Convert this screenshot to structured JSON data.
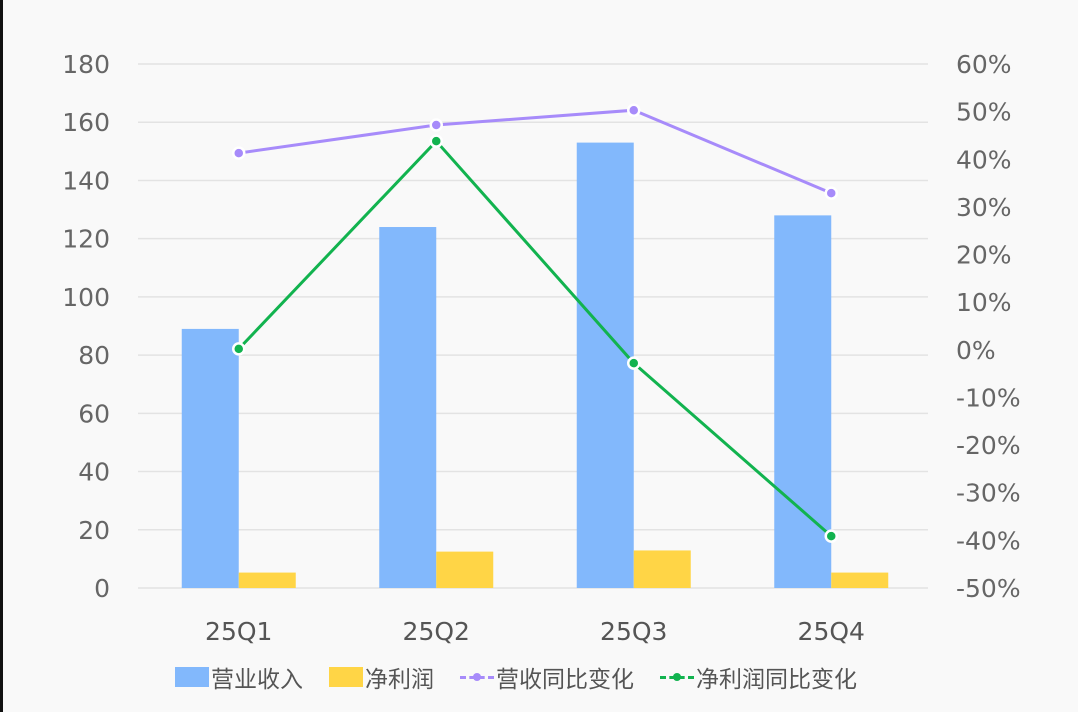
{
  "chart_data": {
    "type": "bar",
    "title": "",
    "categories": [
      "25Q1",
      "25Q2",
      "25Q3",
      "25Q4"
    ],
    "series": [
      {
        "name": "营业收入",
        "type": "bar",
        "axis": "left",
        "color": "#82b8fc",
        "values": [
          89,
          124,
          153,
          128
        ]
      },
      {
        "name": "净利润",
        "type": "bar",
        "axis": "left",
        "color": "#ffd546",
        "values": [
          5.3,
          12.5,
          12.9,
          5.3
        ]
      },
      {
        "name": "营收同比变化",
        "type": "line",
        "axis": "right",
        "color": "#a78bfa",
        "values": [
          41.3,
          47.2,
          50.3,
          32.9
        ],
        "unit": "%"
      },
      {
        "name": "净利润同比变化",
        "type": "line",
        "axis": "right",
        "color": "#12b34f",
        "values": [
          0.2,
          43.8,
          -2.8,
          -39.1
        ],
        "unit": "%"
      }
    ],
    "left_axis": {
      "ylim": [
        0,
        180
      ],
      "ticks": [
        "0",
        "20",
        "40",
        "60",
        "80",
        "100",
        "120",
        "140",
        "160",
        "180"
      ]
    },
    "right_axis": {
      "ylim": [
        -50,
        60
      ],
      "ticks": [
        "-50%",
        "-40%",
        "-30%",
        "-20%",
        "-10%",
        "0%",
        "10%",
        "20%",
        "30%",
        "40%",
        "50%",
        "60%"
      ]
    },
    "xlabel": "",
    "ylabel": "",
    "grid": true,
    "legend_position": "bottom"
  },
  "legend": {
    "items": [
      {
        "label": "营业收入",
        "kind": "bar",
        "color": "#82b8fc"
      },
      {
        "label": "净利润",
        "kind": "bar",
        "color": "#ffd546"
      },
      {
        "label": "营收同比变化",
        "kind": "line",
        "color": "#a78bfa"
      },
      {
        "label": "净利润同比变化",
        "kind": "line",
        "color": "#12b34f"
      }
    ]
  }
}
